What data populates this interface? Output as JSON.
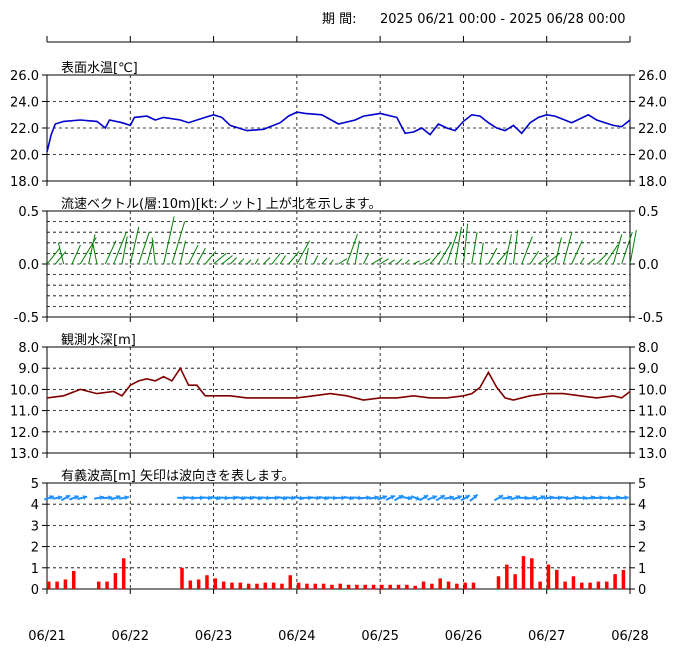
{
  "period_label": "期 間:",
  "period_range": "2025 06/21 00:00 - 2025 06/28 00:00",
  "colors": {
    "temp": "#0000cc",
    "current": "#008000",
    "depth": "#800000",
    "wave_bar": "#ff0000",
    "wave_arrow": "#1e90ff"
  },
  "x_ticks": [
    "06/21",
    "06/22",
    "06/23",
    "06/24",
    "06/25",
    "06/26",
    "06/27",
    "06/28"
  ],
  "chart_data": [
    {
      "type": "line",
      "title": "表面水温[℃]",
      "ylim": [
        18,
        26
      ],
      "yticks": [
        "26.0",
        "24.0",
        "22.0",
        "20.0",
        "18.0"
      ],
      "x_days": [
        0.0,
        0.05,
        0.1,
        0.2,
        0.4,
        0.6,
        0.7,
        0.75,
        0.9,
        1.0,
        1.05,
        1.2,
        1.3,
        1.4,
        1.6,
        1.7,
        1.9,
        2.0,
        2.1,
        2.2,
        2.3,
        2.4,
        2.6,
        2.8,
        2.9,
        3.0,
        3.1,
        3.3,
        3.5,
        3.7,
        3.8,
        3.9,
        4.0,
        4.2,
        4.3,
        4.4,
        4.5,
        4.6,
        4.7,
        4.8,
        4.9,
        5.0,
        5.1,
        5.2,
        5.3,
        5.4,
        5.5,
        5.6,
        5.7,
        5.8,
        5.9,
        6.0,
        6.1,
        6.3,
        6.5,
        6.6,
        6.7,
        6.8,
        6.9,
        7.0
      ],
      "values": [
        20.2,
        21.5,
        22.3,
        22.5,
        22.6,
        22.5,
        22.0,
        22.6,
        22.4,
        22.2,
        22.8,
        22.9,
        22.6,
        22.8,
        22.6,
        22.4,
        22.8,
        23.0,
        22.8,
        22.2,
        22.0,
        21.8,
        21.9,
        22.4,
        22.9,
        23.2,
        23.1,
        23.0,
        22.3,
        22.6,
        22.9,
        23.0,
        23.1,
        22.8,
        21.6,
        21.7,
        22.0,
        21.5,
        22.3,
        22.0,
        21.8,
        22.5,
        23.0,
        22.9,
        22.4,
        22.0,
        21.8,
        22.2,
        21.6,
        22.4,
        22.8,
        23.0,
        22.9,
        22.4,
        23.0,
        22.6,
        22.4,
        22.2,
        22.1,
        22.6
      ],
      "series_color": "#0000cc"
    },
    {
      "type": "vector",
      "title": "流速ベクトル(層:10m)[kt:ノット] 上が北を示します。",
      "ylim": [
        -0.5,
        0.5
      ],
      "yticks": [
        "0.5",
        "0.0",
        "-0.5"
      ],
      "x_days": [
        0.0,
        0.1,
        0.2,
        0.3,
        0.4,
        0.5,
        0.6,
        0.7,
        0.8,
        0.9,
        1.0,
        1.1,
        1.2,
        1.3,
        1.4,
        1.5,
        1.6,
        1.7,
        1.8,
        1.9,
        2.0,
        2.1,
        2.2,
        2.3,
        2.4,
        2.5,
        2.6,
        2.7,
        2.8,
        2.9,
        3.0,
        3.1,
        3.2,
        3.3,
        3.4,
        3.5,
        3.6,
        3.7,
        3.8,
        3.9,
        4.0,
        4.1,
        4.2,
        4.3,
        4.4,
        4.5,
        4.6,
        4.7,
        4.8,
        4.9,
        5.0,
        5.1,
        5.2,
        5.3,
        5.4,
        5.5,
        5.6,
        5.7,
        5.8,
        5.9,
        6.0,
        6.1,
        6.2,
        6.3,
        6.4,
        6.5,
        6.6,
        6.7,
        6.8,
        6.9,
        7.0
      ],
      "u": [
        0.12,
        0.1,
        -0.05,
        0.08,
        0.15,
        0.06,
        -0.04,
        0.1,
        0.12,
        0.05,
        0.08,
        0.1,
        0.06,
        -0.03,
        0.1,
        0.12,
        0.05,
        0.09,
        0.08,
        0.1,
        0.12,
        0.1,
        0.06,
        0.05,
        0.04,
        0.03,
        0.06,
        0.08,
        0.05,
        0.1,
        0.12,
        0.03,
        0.04,
        0.05,
        0.03,
        0.08,
        0.1,
        0.04,
        0.05,
        0.1,
        0.08,
        0.06,
        0.05,
        0.04,
        0.06,
        0.08,
        0.1,
        0.12,
        0.1,
        0.06,
        0.04,
        0.05,
        0.03,
        0.08,
        0.1,
        0.06,
        0.04,
        0.1,
        0.08,
        0.1,
        0.12,
        0.06,
        0.08,
        0.1,
        0.04,
        0.06,
        0.1,
        0.12,
        0.08,
        0.1,
        0.06
      ],
      "v": [
        0.15,
        0.12,
        0.2,
        0.18,
        0.25,
        0.28,
        0.2,
        0.22,
        0.3,
        0.26,
        0.35,
        0.3,
        0.22,
        0.25,
        0.45,
        0.4,
        0.22,
        0.18,
        0.15,
        0.12,
        0.1,
        0.08,
        0.06,
        0.05,
        0.04,
        0.05,
        0.06,
        0.1,
        0.08,
        0.12,
        0.22,
        0.15,
        0.08,
        0.06,
        0.04,
        0.05,
        0.28,
        0.22,
        0.1,
        0.06,
        0.05,
        0.04,
        0.05,
        0.04,
        0.03,
        0.05,
        0.12,
        0.2,
        0.3,
        0.35,
        0.38,
        0.3,
        0.2,
        0.15,
        0.12,
        0.28,
        0.32,
        0.26,
        0.12,
        0.08,
        0.1,
        0.25,
        0.3,
        0.22,
        0.06,
        0.05,
        0.1,
        0.18,
        0.28,
        0.3,
        0.32
      ],
      "series_color": "#008000"
    },
    {
      "type": "line",
      "title": "観測水深[m]",
      "ylim": [
        13,
        8
      ],
      "yticks": [
        "8.0",
        "9.0",
        "10.0",
        "11.0",
        "12.0",
        "13.0"
      ],
      "x_days": [
        0.0,
        0.2,
        0.4,
        0.6,
        0.8,
        0.9,
        1.0,
        1.1,
        1.2,
        1.3,
        1.4,
        1.5,
        1.6,
        1.7,
        1.8,
        1.9,
        2.0,
        2.2,
        2.4,
        2.6,
        2.8,
        3.0,
        3.2,
        3.4,
        3.6,
        3.8,
        4.0,
        4.2,
        4.4,
        4.6,
        4.8,
        5.0,
        5.1,
        5.2,
        5.3,
        5.4,
        5.5,
        5.6,
        5.8,
        6.0,
        6.2,
        6.4,
        6.6,
        6.8,
        6.9,
        7.0
      ],
      "values": [
        10.4,
        10.3,
        10.0,
        10.2,
        10.1,
        10.3,
        9.8,
        9.6,
        9.5,
        9.6,
        9.4,
        9.6,
        9.0,
        9.8,
        9.8,
        10.3,
        10.3,
        10.3,
        10.4,
        10.4,
        10.4,
        10.4,
        10.3,
        10.2,
        10.3,
        10.5,
        10.4,
        10.4,
        10.3,
        10.4,
        10.4,
        10.3,
        10.2,
        9.9,
        9.2,
        9.9,
        10.4,
        10.5,
        10.3,
        10.2,
        10.2,
        10.3,
        10.4,
        10.3,
        10.4,
        10.1
      ],
      "series_color": "#800000"
    },
    {
      "type": "bar",
      "title": "有義波高[m] 矢印は波向きを表します。",
      "ylim": [
        0,
        5
      ],
      "yticks": [
        "5",
        "4",
        "3",
        "2",
        "1",
        "0"
      ],
      "x_days": [
        0.0,
        0.1,
        0.2,
        0.3,
        0.6,
        0.7,
        0.8,
        0.9,
        1.6,
        1.7,
        1.8,
        1.9,
        2.0,
        2.1,
        2.2,
        2.3,
        2.4,
        2.5,
        2.6,
        2.7,
        2.8,
        2.9,
        3.0,
        3.1,
        3.2,
        3.3,
        3.4,
        3.5,
        3.6,
        3.7,
        3.8,
        3.9,
        4.0,
        4.1,
        4.2,
        4.3,
        4.4,
        4.5,
        4.6,
        4.7,
        4.8,
        4.9,
        5.0,
        5.1,
        5.4,
        5.5,
        5.6,
        5.7,
        5.8,
        5.9,
        6.0,
        6.1,
        6.2,
        6.3,
        6.4,
        6.5,
        6.6,
        6.7,
        6.8,
        6.9
      ],
      "values": [
        0.35,
        0.35,
        0.45,
        0.85,
        0.35,
        0.35,
        0.75,
        1.45,
        1.0,
        0.4,
        0.45,
        0.65,
        0.5,
        0.35,
        0.3,
        0.3,
        0.25,
        0.25,
        0.3,
        0.3,
        0.25,
        0.65,
        0.3,
        0.25,
        0.25,
        0.25,
        0.2,
        0.25,
        0.2,
        0.2,
        0.2,
        0.2,
        0.2,
        0.2,
        0.2,
        0.2,
        0.15,
        0.35,
        0.25,
        0.5,
        0.35,
        0.25,
        0.3,
        0.3,
        0.6,
        1.15,
        0.7,
        1.55,
        1.45,
        0.35,
        1.15,
        0.9,
        0.35,
        0.6,
        0.3,
        0.3,
        0.35,
        0.35,
        0.7,
        0.9
      ],
      "arrows_x_days": [
        0.0,
        0.1,
        0.2,
        0.3,
        0.4,
        0.6,
        0.7,
        0.8,
        0.9,
        1.6,
        1.7,
        1.8,
        1.9,
        2.0,
        2.1,
        2.2,
        2.3,
        2.4,
        2.5,
        2.6,
        2.7,
        2.8,
        2.9,
        3.0,
        3.1,
        3.2,
        3.3,
        3.4,
        3.5,
        3.6,
        3.7,
        3.8,
        3.9,
        4.0,
        4.1,
        4.2,
        4.3,
        4.4,
        4.5,
        4.6,
        4.7,
        4.8,
        4.9,
        5.0,
        5.1,
        5.4,
        5.5,
        5.6,
        5.7,
        5.8,
        5.9,
        6.0,
        6.1,
        6.2,
        6.3,
        6.4,
        6.5,
        6.6,
        6.7,
        6.8,
        6.9
      ],
      "arrows_dir_deg": [
        70,
        80,
        60,
        70,
        75,
        80,
        85,
        70,
        80,
        90,
        95,
        90,
        95,
        100,
        95,
        90,
        100,
        95,
        100,
        95,
        90,
        100,
        95,
        100,
        90,
        95,
        100,
        95,
        90,
        100,
        95,
        85,
        80,
        70,
        65,
        60,
        100,
        110,
        60,
        70,
        60,
        80,
        70,
        60,
        50,
        60,
        80,
        70,
        90,
        80,
        70,
        80,
        90,
        100,
        80,
        90,
        80,
        85,
        90,
        80,
        85
      ],
      "series_color": "#ff0000",
      "arrow_color": "#1e90ff"
    }
  ]
}
